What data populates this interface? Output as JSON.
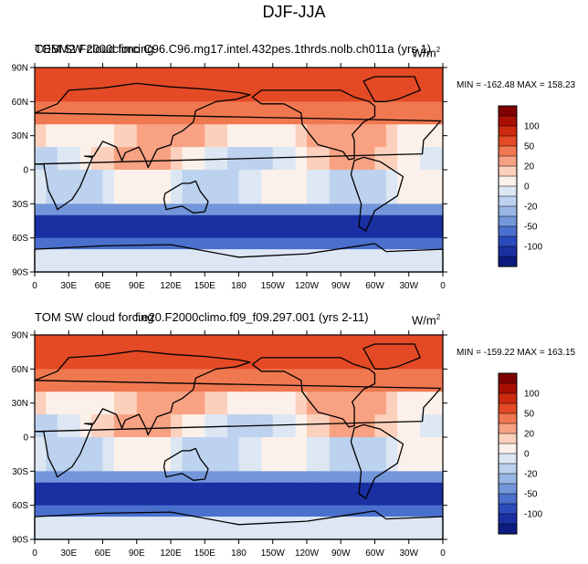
{
  "figure_title": "DJF-JJA",
  "cbar_labels": [
    "100",
    "50",
    "20",
    "0",
    "-20",
    "-50",
    "-100"
  ],
  "cbar_colors": [
    "#7f0000",
    "#a81004",
    "#cc2a10",
    "#e34a25",
    "#f07850",
    "#f8a283",
    "#fbd0bc",
    "#fcf0ea",
    "#dde7f4",
    "#bcd2ee",
    "#98b6e6",
    "#7396da",
    "#4a6fcc",
    "#2b4bbd",
    "#1a2fa2",
    "#0c1c80"
  ],
  "chart_data": [
    {
      "type": "heatmap",
      "title": "CESM2 F2000climo C96.C96.mg17.intel.432pes.1thrds.nolb.ch011a (yrs 1)",
      "title_overlap": "TOM SW cloud forcing",
      "units": "W/m",
      "units_sup": "2",
      "min_max": "MIN = -162.48 MAX = 158.23",
      "min": -162.48,
      "max": 158.23,
      "xticks": [
        "0",
        "30E",
        "60E",
        "90E",
        "120E",
        "150E",
        "180",
        "150W",
        "120W",
        "90W",
        "60W",
        "30W",
        "0"
      ],
      "yticks": [
        "90N",
        "60N",
        "30N",
        "0",
        "30S",
        "60S",
        "90S"
      ],
      "levels": [
        -100,
        -50,
        -20,
        0,
        20,
        50,
        100
      ]
    },
    {
      "type": "heatmap",
      "title": "TOM SW cloud forcing",
      "title_overlap": "f.e20.F2000climo.f09_f09.297.001 (yrs 2-11)",
      "units": "W/m",
      "units_sup": "2",
      "min_max": "MIN = -159.22 MAX = 163.15",
      "min": -159.22,
      "max": 163.15,
      "xticks": [
        "0",
        "30E",
        "60E",
        "90E",
        "120E",
        "150E",
        "180",
        "150W",
        "120W",
        "90W",
        "60W",
        "30W",
        "0"
      ],
      "yticks": [
        "90N",
        "60N",
        "30N",
        "0",
        "30S",
        "60S",
        "90S"
      ],
      "levels": [
        -100,
        -50,
        -20,
        0,
        20,
        50,
        100
      ]
    }
  ]
}
